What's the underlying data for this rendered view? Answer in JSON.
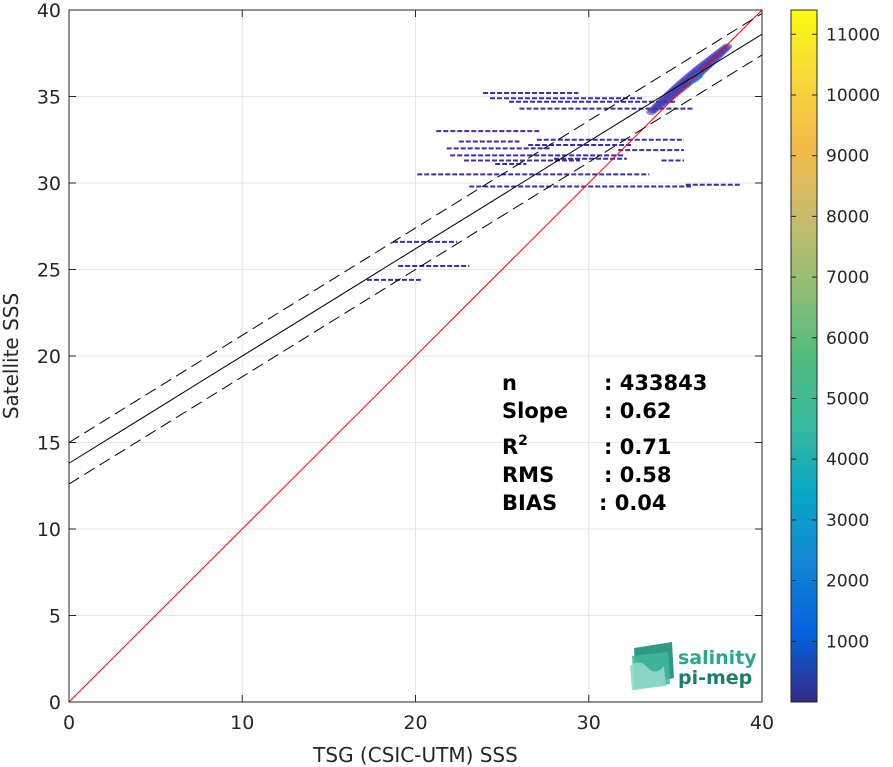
{
  "chart_data": {
    "type": "heatmap",
    "subtype": "density scatter",
    "xlabel": "TSG (CSIC-UTM) SSS",
    "ylabel": "Satellite SSS",
    "xlim": [
      0,
      40
    ],
    "ylim": [
      0,
      40
    ],
    "xticks": [
      0,
      10,
      20,
      30,
      40
    ],
    "yticks": [
      0,
      5,
      10,
      15,
      20,
      25,
      30,
      35,
      40
    ],
    "grid": true,
    "colorbar": {
      "colormap": "parula",
      "range": [
        0,
        11400
      ],
      "ticks": [
        1000,
        2000,
        3000,
        4000,
        5000,
        6000,
        7000,
        8000,
        9000,
        10000,
        11000
      ]
    },
    "lines": [
      {
        "kind": "one-to-one",
        "color": "#ff0000",
        "x": [
          0,
          40
        ],
        "y": [
          0,
          40
        ]
      },
      {
        "kind": "fit",
        "color": "#000000",
        "dash": false,
        "x": [
          0,
          40
        ],
        "y": [
          13.8,
          38.6
        ]
      },
      {
        "kind": "fit-upper",
        "color": "#000000",
        "dash": true,
        "x": [
          0,
          40
        ],
        "y": [
          15.0,
          39.8
        ]
      },
      {
        "kind": "fit-lower",
        "color": "#000000",
        "dash": true,
        "x": [
          0,
          40
        ],
        "y": [
          12.6,
          37.4
        ]
      }
    ],
    "density_segments": [
      {
        "x0": 18.7,
        "x1": 22.4,
        "y": 26.6
      },
      {
        "x0": 19.0,
        "x1": 23.1,
        "y": 25.2
      },
      {
        "x0": 17.2,
        "x1": 20.4,
        "y": 24.4
      },
      {
        "x0": 23.9,
        "x1": 29.4,
        "y": 35.2
      },
      {
        "x0": 24.3,
        "x1": 33.2,
        "y": 34.9
      },
      {
        "x0": 25.4,
        "x1": 35.0,
        "y": 34.7
      },
      {
        "x0": 26.0,
        "x1": 36.0,
        "y": 34.3
      },
      {
        "x0": 21.2,
        "x1": 27.2,
        "y": 33.0
      },
      {
        "x0": 27.0,
        "x1": 35.5,
        "y": 32.5
      },
      {
        "x0": 22.5,
        "x1": 26.0,
        "y": 32.4
      },
      {
        "x0": 26.5,
        "x1": 32.5,
        "y": 32.2
      },
      {
        "x0": 21.8,
        "x1": 27.8,
        "y": 32.0
      },
      {
        "x0": 22.0,
        "x1": 32.1,
        "y": 31.6
      },
      {
        "x0": 31.7,
        "x1": 35.5,
        "y": 31.9
      },
      {
        "x0": 22.8,
        "x1": 29.5,
        "y": 31.3
      },
      {
        "x0": 28.0,
        "x1": 32.2,
        "y": 31.4
      },
      {
        "x0": 34.2,
        "x1": 35.5,
        "y": 31.3
      },
      {
        "x0": 24.6,
        "x1": 26.4,
        "y": 31.1
      },
      {
        "x0": 20.1,
        "x1": 33.5,
        "y": 30.5
      },
      {
        "x0": 23.1,
        "x1": 35.9,
        "y": 29.8
      },
      {
        "x0": 35.6,
        "x1": 38.8,
        "y": 29.9
      }
    ],
    "density_core": {
      "x": [
        33.6,
        38.0
      ],
      "y": [
        34.1,
        37.9
      ],
      "peak": [
        36.2,
        36.1
      ]
    },
    "stats": [
      {
        "label": "n",
        "value": ": 433843"
      },
      {
        "label": "Slope",
        "value": ": 0.62"
      },
      {
        "label": "R",
        "sup": "2",
        "value": ": 0.71"
      },
      {
        "label": "RMS",
        "value": ": 0.58"
      },
      {
        "label": "BIAS",
        "value": ": 0.04"
      }
    ]
  },
  "logo": {
    "line1": "salinity",
    "line2": "pi-mep",
    "color": "#2aa88e"
  }
}
